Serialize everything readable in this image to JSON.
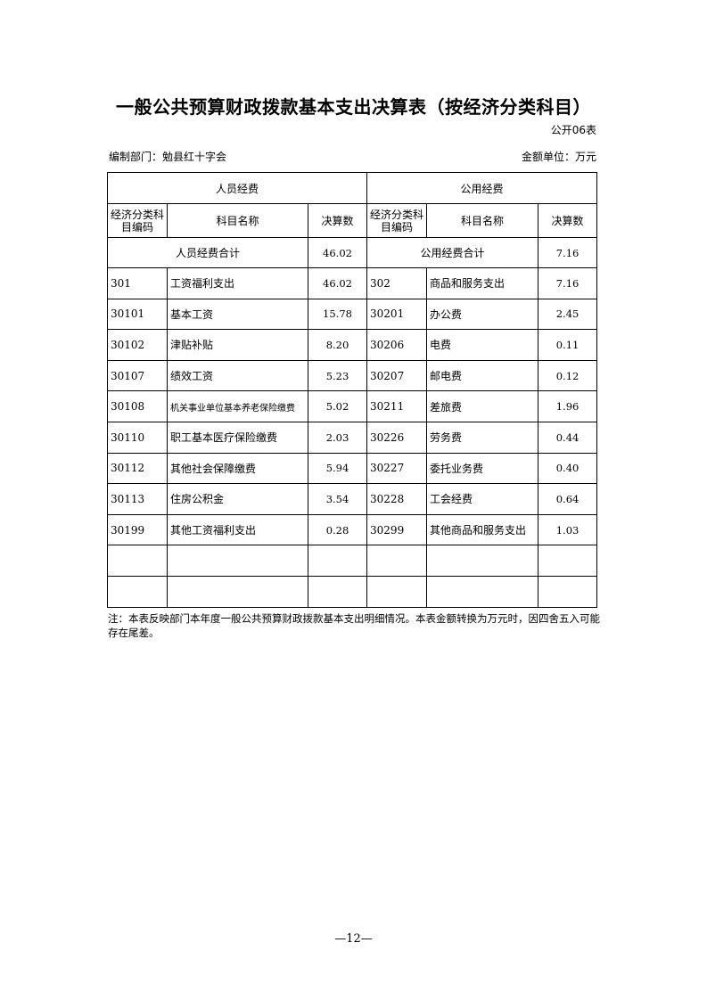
{
  "title": "一般公共预算财政拨款基本支出决算表（按经济分类科目）",
  "table_no": "公开06表",
  "department": "编制部门：勉县红十字会",
  "unit": "金额单位：万元",
  "groups": {
    "personnel": "人员经费",
    "public": "公用经费"
  },
  "columns": {
    "code": "经济分类科目编码",
    "name": "科目名称",
    "amount": "决算数"
  },
  "totals": {
    "personnel_label": "人员经费合计",
    "personnel_value": "46.02",
    "public_label": "公用经费合计",
    "public_value": "7.16"
  },
  "rows": [
    {
      "lcode": "301",
      "lname": "工资福利支出",
      "lval": "46.02",
      "rcode": "302",
      "rname": "商品和服务支出",
      "rval": "7.16"
    },
    {
      "lcode": "30101",
      "lname": "基本工资",
      "lval": "15.78",
      "rcode": "30201",
      "rname": "办公费",
      "rval": "2.45"
    },
    {
      "lcode": "30102",
      "lname": "津贴补贴",
      "lval": "8.20",
      "rcode": "30206",
      "rname": "电费",
      "rval": "0.11"
    },
    {
      "lcode": "30107",
      "lname": "绩效工资",
      "lval": "5.23",
      "rcode": "30207",
      "rname": "邮电费",
      "rval": "0.12"
    },
    {
      "lcode": "30108",
      "lname": "机关事业单位基本养老保险缴费",
      "lval": "5.02",
      "rcode": "30211",
      "rname": "差旅费",
      "rval": "1.96"
    },
    {
      "lcode": "30110",
      "lname": "职工基本医疗保险缴费",
      "lval": "2.03",
      "rcode": "30226",
      "rname": "劳务费",
      "rval": "0.44"
    },
    {
      "lcode": "30112",
      "lname": "其他社会保障缴费",
      "lval": "5.94",
      "rcode": "30227",
      "rname": "委托业务费",
      "rval": "0.40"
    },
    {
      "lcode": "30113",
      "lname": "住房公积金",
      "lval": "3.54",
      "rcode": "30228",
      "rname": "工会经费",
      "rval": "0.64"
    },
    {
      "lcode": "30199",
      "lname": "其他工资福利支出",
      "lval": "0.28",
      "rcode": "30299",
      "rname": "其他商品和服务支出",
      "rval": "1.03"
    },
    {
      "lcode": "",
      "lname": "",
      "lval": "",
      "rcode": "",
      "rname": "",
      "rval": ""
    },
    {
      "lcode": "",
      "lname": "",
      "lval": "",
      "rcode": "",
      "rname": "",
      "rval": ""
    }
  ],
  "note": "注：本表反映部门本年度一般公共预算财政拨款基本支出明细情况。本表金额转换为万元时，因四舍五入可能存在尾差。",
  "page_number": "—12—"
}
